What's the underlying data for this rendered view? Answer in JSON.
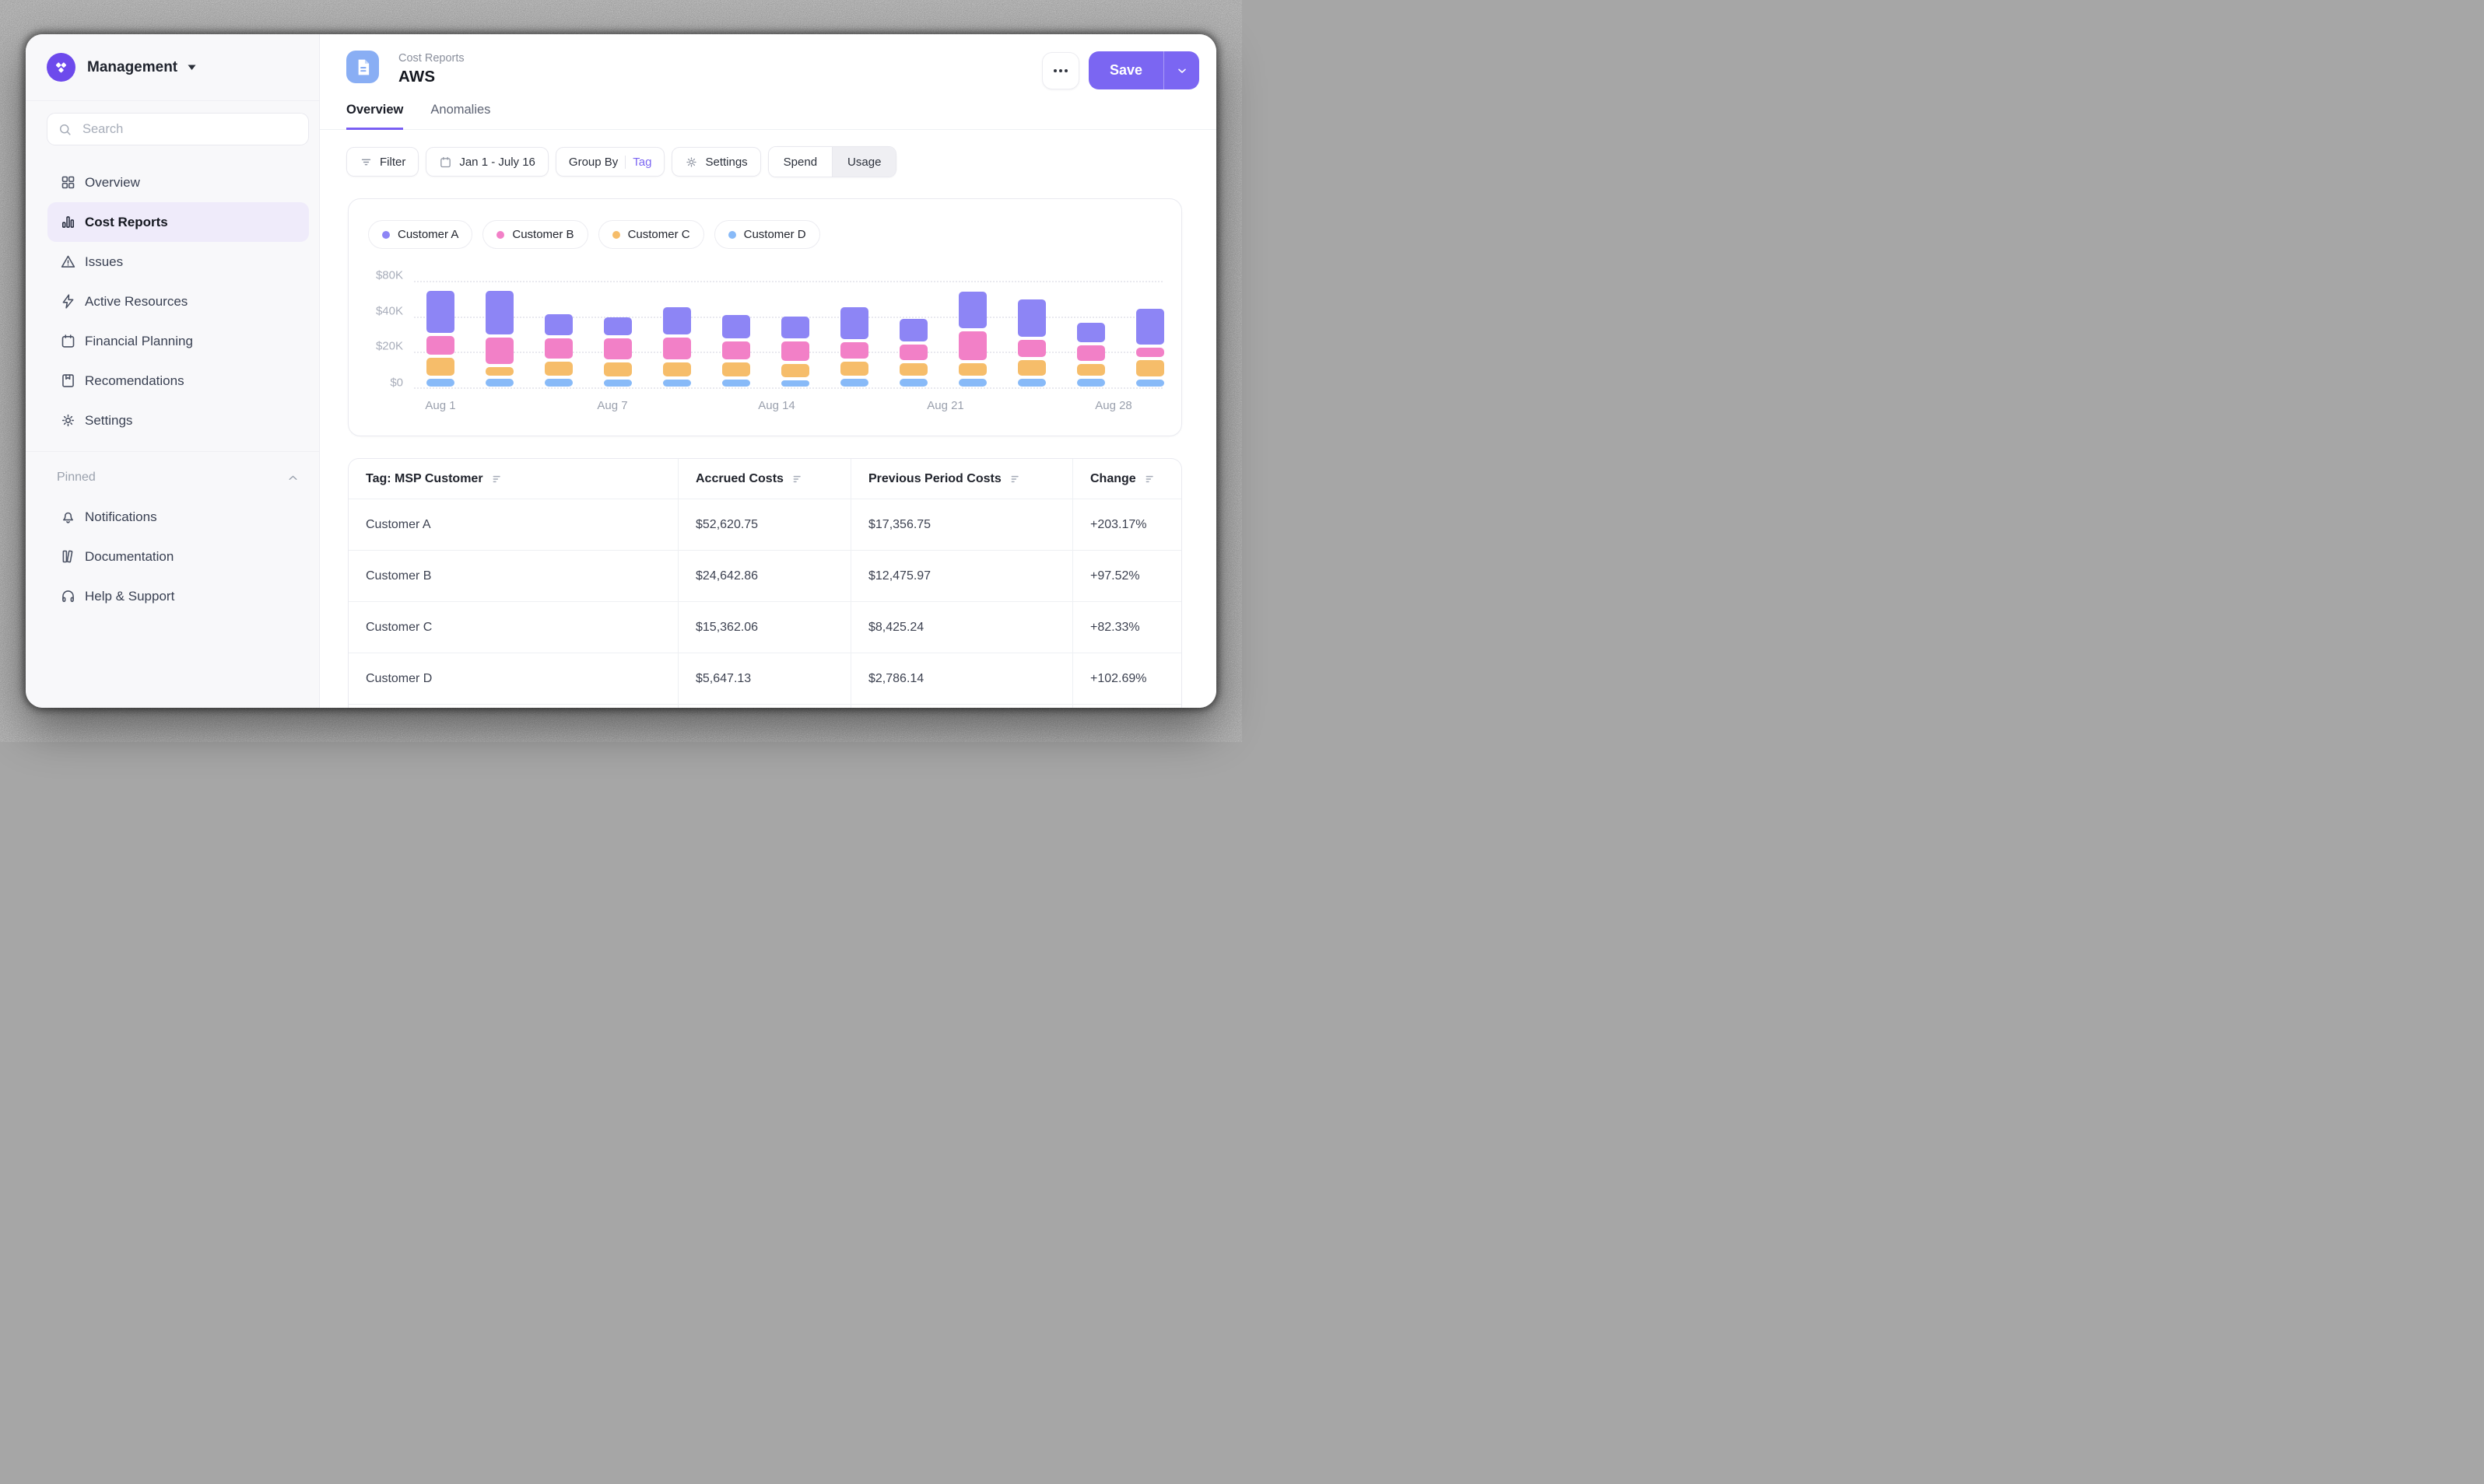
{
  "brand": {
    "name": "Management"
  },
  "sidebar": {
    "search_placeholder": "Search",
    "items": [
      {
        "label": "Overview",
        "icon": "grid",
        "active": false
      },
      {
        "label": "Cost Reports",
        "icon": "barchart",
        "active": true
      },
      {
        "label": "Issues",
        "icon": "warning",
        "active": false
      },
      {
        "label": "Active Resources",
        "icon": "bolt",
        "active": false
      },
      {
        "label": "Financial Planning",
        "icon": "calendar",
        "active": false
      },
      {
        "label": "Recomendations",
        "icon": "bookmark",
        "active": false
      },
      {
        "label": "Settings",
        "icon": "gear",
        "active": false
      }
    ],
    "pinned": {
      "label": "Pinned",
      "items": [
        {
          "label": "Notifications",
          "icon": "bell",
          "active": false
        },
        {
          "label": "Documentation",
          "icon": "book",
          "active": false
        },
        {
          "label": "Help & Support",
          "icon": "headphones",
          "active": false
        }
      ]
    }
  },
  "header": {
    "category": "Cost Reports",
    "title": "AWS",
    "tabs": [
      {
        "label": "Overview",
        "active": true
      },
      {
        "label": "Anomalies",
        "active": false
      }
    ],
    "save_label": "Save"
  },
  "toolbar": {
    "filter_label": "Filter",
    "date_range": "Jan 1 - July 16",
    "group_by_label": "Group By",
    "group_by_value": "Tag",
    "settings_label": "Settings",
    "view_toggle": {
      "options": [
        "Spend",
        "Usage"
      ],
      "selected": "Usage"
    }
  },
  "chart_data": {
    "type": "bar",
    "stacked": true,
    "unit": "USD (thousands)",
    "y_ticks": [
      "$0",
      "$20K",
      "$40K",
      "$80K"
    ],
    "x_ticks": [
      "Aug 1",
      "Aug 7",
      "Aug 14",
      "Aug 21",
      "Aug 28"
    ],
    "series": [
      {
        "name": "Customer A",
        "color": "#8D85F5",
        "values": [
          23.7,
          24.8,
          11.9,
          9.9,
          15.8,
          13.0,
          12.5,
          18.0,
          12.7,
          20.4,
          20.9,
          11.0,
          20.2
        ]
      },
      {
        "name": "Customer B",
        "color": "#F280C7",
        "values": [
          10.8,
          14.9,
          11.4,
          12.1,
          12.1,
          10.1,
          11.0,
          9.2,
          8.8,
          16.5,
          9.9,
          8.8,
          5.3
        ]
      },
      {
        "name": "Customer C",
        "color": "#F6BD6A",
        "values": [
          9.7,
          4.6,
          7.9,
          7.7,
          7.9,
          7.9,
          7.5,
          8.1,
          7.0,
          7.0,
          8.8,
          6.6,
          9.2
        ]
      },
      {
        "name": "Customer D",
        "color": "#88BAF8",
        "values": [
          4.6,
          4.6,
          4.6,
          4.0,
          4.0,
          4.0,
          3.5,
          4.4,
          4.4,
          4.4,
          4.4,
          4.4,
          4.0
        ]
      }
    ],
    "legend_position": "top-left",
    "grid": "dotted-horizontal"
  },
  "table": {
    "columns": [
      "Tag: MSP Customer",
      "Accrued Costs",
      "Previous Period Costs",
      "Change"
    ],
    "rows": [
      [
        "Customer A",
        "$52,620.75",
        "$17,356.75",
        "+203.17%"
      ],
      [
        "Customer B",
        "$24,642.86",
        "$12,475.97",
        "+97.52%"
      ],
      [
        "Customer C",
        "$15,362.06",
        "$8,425.24",
        "+82.33%"
      ],
      [
        "Customer D",
        "$5,647.13",
        "$2,786.14",
        "+102.69%"
      ]
    ]
  },
  "colors": {
    "brand_logo": "#6D4AEC",
    "accent": "#7B66F2",
    "doc_icon_bg": "#89AEF4",
    "active_nav_bg": "#EFEBFA",
    "customer_a": "#8D85F5",
    "customer_b": "#F280C7",
    "customer_c": "#F6BD6A",
    "customer_d": "#88BAF8"
  }
}
